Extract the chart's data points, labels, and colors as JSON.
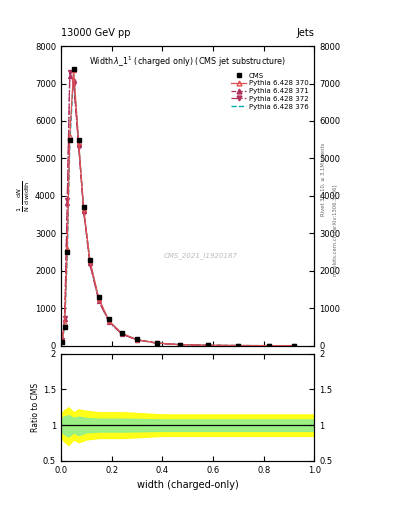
{
  "header_left": "13000 GeV pp",
  "header_right": "Jets",
  "watermark": "CMS_2021_I1920187",
  "right_label_top": "Rivet 3.1.10, ≥ 3.1M events",
  "right_label_bottom": "mcplots.cern.ch [arXiv:1306.3436]",
  "xlabel": "width (charged-only)",
  "ylabel_ratio": "Ratio to CMS",
  "ylim_main": [
    0,
    8000
  ],
  "ylim_ratio": [
    0.5,
    2.0
  ],
  "xlim": [
    0.0,
    1.0
  ],
  "yticks_main": [
    0,
    1000,
    2000,
    3000,
    4000,
    5000,
    6000,
    7000,
    8000
  ],
  "yticks_ratio": [
    0.5,
    1.0,
    1.5,
    2.0
  ],
  "x_data": [
    0.005,
    0.015,
    0.025,
    0.035,
    0.05,
    0.07,
    0.09,
    0.115,
    0.15,
    0.19,
    0.24,
    0.3,
    0.38,
    0.47,
    0.58,
    0.7,
    0.82,
    0.92
  ],
  "cms_y": [
    100,
    500,
    2500,
    5500,
    7400,
    5500,
    3700,
    2300,
    1300,
    700,
    350,
    170,
    75,
    30,
    12,
    4,
    1,
    0.3
  ],
  "py370_y": [
    120,
    600,
    2600,
    5600,
    7350,
    5450,
    3650,
    2250,
    1250,
    660,
    330,
    160,
    70,
    28,
    11,
    3.5,
    0.9,
    0.2
  ],
  "py371_y": [
    150,
    700,
    3800,
    7200,
    7100,
    5350,
    3600,
    2200,
    1200,
    640,
    320,
    155,
    68,
    27,
    10,
    3.2,
    0.8,
    0.2
  ],
  "py372_y": [
    160,
    750,
    3900,
    7300,
    7000,
    5300,
    3550,
    2150,
    1180,
    625,
    310,
    150,
    65,
    26,
    10,
    3.0,
    0.8,
    0.2
  ],
  "py376_y": [
    110,
    550,
    2400,
    5400,
    7250,
    5400,
    3620,
    2220,
    1230,
    648,
    325,
    158,
    69,
    27,
    11,
    3.3,
    0.85,
    0.22
  ],
  "ratio_x": [
    0.0,
    0.01,
    0.03,
    0.05,
    0.07,
    0.1,
    0.15,
    0.25,
    0.4,
    0.55,
    0.7,
    1.0
  ],
  "ratio_yel_up": [
    1.15,
    1.2,
    1.25,
    1.18,
    1.22,
    1.2,
    1.18,
    1.18,
    1.15,
    1.15,
    1.15,
    1.15
  ],
  "ratio_yel_lo": [
    0.85,
    0.78,
    0.72,
    0.8,
    0.76,
    0.8,
    0.82,
    0.82,
    0.85,
    0.85,
    0.85,
    0.85
  ],
  "ratio_grn_up": [
    1.08,
    1.12,
    1.14,
    1.1,
    1.12,
    1.1,
    1.09,
    1.09,
    1.08,
    1.08,
    1.08,
    1.08
  ],
  "ratio_grn_lo": [
    0.92,
    0.88,
    0.84,
    0.9,
    0.86,
    0.9,
    0.91,
    0.91,
    0.92,
    0.92,
    0.92,
    0.92
  ]
}
